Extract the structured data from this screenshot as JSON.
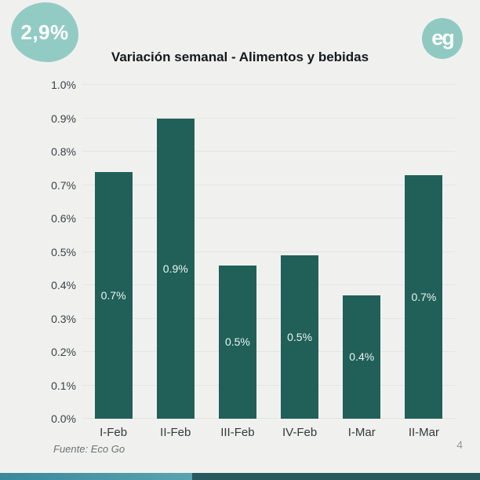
{
  "badge": {
    "value": "2,9%"
  },
  "logo": {
    "text": "eg"
  },
  "chart_data": {
    "type": "bar",
    "title": "Variación semanal - Alimentos y bebidas",
    "categories": [
      "I-Feb",
      "II-Feb",
      "III-Feb",
      "IV-Feb",
      "I-Mar",
      "II-Mar"
    ],
    "values": [
      0.74,
      0.9,
      0.46,
      0.49,
      0.37,
      0.73
    ],
    "bar_labels": [
      "0.7%",
      "0.9%",
      "0.5%",
      "0.5%",
      "0.4%",
      "0.7%"
    ],
    "xlabel": "",
    "ylabel": "",
    "ylim": [
      0,
      1.0
    ],
    "ytick_step": 0.1,
    "ytick_labels": [
      "0.0%",
      "0.1%",
      "0.2%",
      "0.3%",
      "0.4%",
      "0.5%",
      "0.6%",
      "0.7%",
      "0.8%",
      "0.9%",
      "1.0%"
    ],
    "grid": true,
    "legend": false,
    "bar_color": "#206058",
    "bar_label_color": "#ecf5f3"
  },
  "footer": {
    "source": "Fuente: Eco Go",
    "page_number": "4"
  },
  "colors": {
    "background": "#f0f1ef",
    "badge": "#92cbc4",
    "logo": "#8fc9c2",
    "bar": "#206058",
    "strip_left": "#38899b",
    "strip_right": "#28595c"
  }
}
